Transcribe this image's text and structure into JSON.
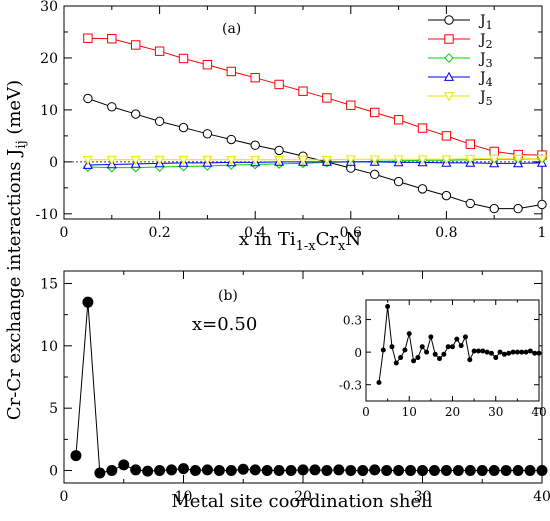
{
  "figure": {
    "ylabel_main": "Cr-Cr exchange interactions J",
    "ylabel_sub": "ij",
    "ylabel_unit": " (meV)"
  },
  "chart_data": [
    {
      "type": "line",
      "panel_label": "(a)",
      "xlabel": "x in Ti",
      "xlabel_parts": [
        "x in Ti",
        "1-x",
        "Cr",
        "x",
        "N"
      ],
      "xlim": [
        0,
        1
      ],
      "ylim": [
        -11,
        30
      ],
      "xticks": [
        0,
        0.2,
        0.4,
        0.6,
        0.8,
        1
      ],
      "xtick_labels": [
        "0",
        "0.2",
        "0.4",
        "0.6",
        "0.8",
        "1"
      ],
      "yticks": [
        -10,
        0,
        10,
        20,
        30
      ],
      "ytick_labels": [
        "-10",
        "0",
        "10",
        "20",
        "30"
      ],
      "legend_position": "top-right",
      "x": [
        0.05,
        0.1,
        0.15,
        0.2,
        0.25,
        0.3,
        0.35,
        0.4,
        0.45,
        0.5,
        0.55,
        0.6,
        0.65,
        0.7,
        0.75,
        0.8,
        0.85,
        0.9,
        0.95,
        1.0
      ],
      "series": [
        {
          "name": "J",
          "sub": "1",
          "color": "#000000",
          "marker": "circle",
          "values": [
            12.2,
            10.6,
            9.2,
            7.8,
            6.6,
            5.4,
            4.3,
            3.2,
            2.2,
            1.1,
            0.0,
            -1.2,
            -2.4,
            -3.8,
            -5.2,
            -6.5,
            -8.0,
            -9.0,
            -9.0,
            -8.2
          ]
        },
        {
          "name": "J",
          "sub": "2",
          "color": "#ff0000",
          "marker": "square",
          "values": [
            23.8,
            23.7,
            22.5,
            21.3,
            19.9,
            18.7,
            17.4,
            16.2,
            14.9,
            13.6,
            12.3,
            10.9,
            9.5,
            8.1,
            6.5,
            5.0,
            3.4,
            2.0,
            1.4,
            1.3
          ]
        },
        {
          "name": "J",
          "sub": "3",
          "color": "#00d000",
          "marker": "diamond",
          "values": [
            -1.0,
            -1.1,
            -1.1,
            -1.0,
            -0.9,
            -0.8,
            -0.6,
            -0.5,
            -0.4,
            -0.3,
            -0.1,
            0.0,
            0.1,
            0.2,
            0.3,
            0.3,
            0.4,
            0.5,
            0.5,
            0.6
          ]
        },
        {
          "name": "J",
          "sub": "4",
          "color": "#0000ff",
          "marker": "triangle",
          "values": [
            -0.6,
            -0.5,
            -0.4,
            -0.3,
            -0.2,
            -0.2,
            -0.1,
            -0.1,
            0.0,
            0.0,
            0.0,
            0.0,
            0.0,
            -0.1,
            -0.1,
            -0.2,
            -0.2,
            -0.3,
            -0.3,
            -0.2
          ]
        },
        {
          "name": "J",
          "sub": "5",
          "color": "#e6e600",
          "marker": "triangle-down",
          "values": [
            0.4,
            0.4,
            0.4,
            0.4,
            0.4,
            0.4,
            0.4,
            0.4,
            0.4,
            0.4,
            0.4,
            0.5,
            0.5,
            0.5,
            0.5,
            0.5,
            0.6,
            0.6,
            0.6,
            0.6
          ]
        }
      ]
    },
    {
      "type": "line",
      "panel_label": "(b)",
      "annotation": "x=0.50",
      "xlabel": "Metal site coordination shell",
      "xlim": [
        0,
        40
      ],
      "ylim": [
        -1,
        16
      ],
      "xticks": [
        0,
        10,
        20,
        30,
        40
      ],
      "xtick_labels": [
        "0",
        "10",
        "20",
        "30",
        "40"
      ],
      "yticks": [
        0,
        5,
        10,
        15
      ],
      "ytick_labels": [
        "0",
        "5",
        "10",
        "15"
      ],
      "x": [
        1,
        2,
        3,
        4,
        5,
        6,
        7,
        8,
        9,
        10,
        11,
        12,
        13,
        14,
        15,
        16,
        17,
        18,
        19,
        20,
        21,
        22,
        23,
        24,
        25,
        26,
        27,
        28,
        29,
        30,
        31,
        32,
        33,
        34,
        35,
        36,
        37,
        38,
        39,
        40
      ],
      "series": [
        {
          "name": "",
          "color": "#000000",
          "marker": "filled-circle",
          "values": [
            1.2,
            13.5,
            -0.2,
            0.0,
            0.45,
            0.05,
            -0.05,
            0.0,
            0.05,
            0.15,
            0.0,
            0.05,
            0.0,
            0.0,
            0.1,
            0.05,
            0.0,
            0.0,
            0.0,
            0.05,
            0.05,
            0.0,
            0.05,
            0.0,
            0.0,
            0.05,
            0.0,
            0.0,
            0.0,
            0.0,
            0.0,
            0.0,
            0.0,
            0.0,
            0.0,
            0.0,
            0.0,
            0.0,
            0.0,
            0.0
          ]
        }
      ]
    },
    {
      "type": "line",
      "panel_label": "inset",
      "xlim": [
        0,
        40
      ],
      "ylim": [
        -0.45,
        0.48
      ],
      "xticks": [
        0,
        10,
        20,
        30,
        40
      ],
      "xtick_labels": [
        "0",
        "10",
        "20",
        "30",
        "40"
      ],
      "yticks": [
        -0.3,
        0,
        0.3
      ],
      "ytick_labels": [
        "-0.3",
        "0",
        "0.3"
      ],
      "x": [
        3,
        4,
        5,
        6,
        7,
        8,
        9,
        10,
        11,
        12,
        13,
        14,
        15,
        16,
        17,
        18,
        19,
        20,
        21,
        22,
        23,
        24,
        25,
        26,
        27,
        28,
        29,
        30,
        31,
        32,
        33,
        34,
        35,
        36,
        37,
        38,
        39,
        40
      ],
      "series": [
        {
          "name": "",
          "color": "#000000",
          "marker": "small-filled-circle",
          "values": [
            -0.28,
            0.02,
            0.42,
            0.05,
            -0.1,
            -0.05,
            0.02,
            0.17,
            -0.08,
            -0.05,
            0.05,
            0.0,
            0.14,
            -0.02,
            -0.06,
            -0.02,
            0.05,
            0.05,
            0.12,
            0.06,
            0.14,
            -0.07,
            0.01,
            0.01,
            0.01,
            0.0,
            -0.01,
            -0.05,
            0.0,
            -0.02,
            -0.01,
            0.0,
            0.0,
            0.0,
            0.0,
            0.01,
            -0.01,
            -0.01
          ]
        }
      ]
    }
  ]
}
